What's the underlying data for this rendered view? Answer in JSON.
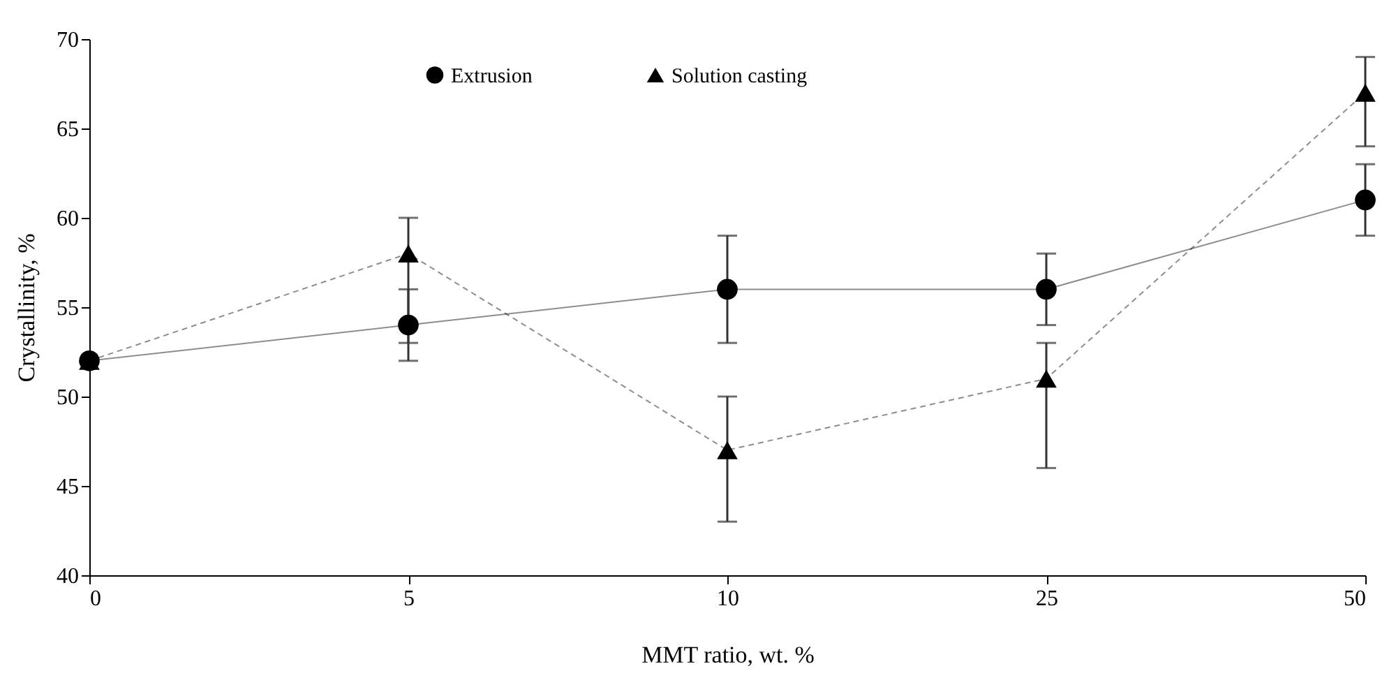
{
  "chart_data": {
    "type": "line",
    "xlabel": "MMT ratio, wt. %",
    "ylabel": "Crystallinity, %",
    "categories": [
      "0",
      "5",
      "10",
      "25",
      "50"
    ],
    "ylim": [
      40,
      70
    ],
    "yticks": [
      40,
      45,
      50,
      55,
      60,
      65,
      70
    ],
    "grid": false,
    "legend": "top",
    "series": [
      {
        "name": "Extrusion",
        "color": "#000000",
        "marker": "circle",
        "line_style": "solid",
        "values": [
          52,
          54,
          56,
          56,
          61
        ],
        "errors": [
          null,
          [
            52,
            56
          ],
          [
            53,
            59
          ],
          [
            54,
            58
          ],
          [
            59,
            63
          ]
        ]
      },
      {
        "name": "Solution casting",
        "color": "#000000",
        "marker": "triangle",
        "line_style": "dashed",
        "values": [
          52,
          58,
          47,
          51,
          67
        ],
        "errors": [
          null,
          [
            53,
            60
          ],
          [
            43,
            50
          ],
          [
            46,
            53
          ],
          [
            64,
            69
          ]
        ]
      }
    ]
  }
}
